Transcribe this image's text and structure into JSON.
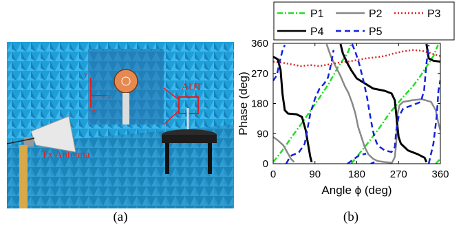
{
  "photo": {
    "label_aut": "AUT",
    "label_tx": "Tx Antenna",
    "axis_x": "x",
    "axis_y": "y",
    "axis_z": "z",
    "colors": {
      "chamber": "#1e9fd8",
      "annotation": "#e0201e"
    }
  },
  "captions": {
    "a": "(a)",
    "b": "(b)"
  },
  "chart_data": {
    "type": "line",
    "xlabel": "Angle ϕ (deg)",
    "ylabel": "Phase (deg)",
    "xlim": [
      0,
      360
    ],
    "ylim": [
      0,
      360
    ],
    "xticks": [
      "0",
      "90",
      "180",
      "270",
      "360"
    ],
    "yticks": [
      "0",
      "90",
      "180",
      "270",
      "360"
    ],
    "grid": false,
    "legend": "top",
    "series": [
      {
        "name": "P1",
        "color": "#22dd22",
        "dash": "dashdot",
        "segments": [
          [
            [
              0,
              5
            ],
            [
              20,
              40
            ],
            [
              40,
              80
            ],
            [
              60,
              118
            ],
            [
              80,
              158
            ],
            [
              100,
              198
            ],
            [
              120,
              240
            ],
            [
              140,
              290
            ],
            [
              160,
              330
            ],
            [
              168,
              358
            ]
          ],
          [
            [
              168,
              0
            ],
            [
              200,
              55
            ],
            [
              225,
              100
            ],
            [
              250,
              150
            ],
            [
              265,
              175
            ],
            [
              280,
              200
            ],
            [
              300,
              230
            ],
            [
              315,
              258
            ],
            [
              330,
              290
            ],
            [
              345,
              322
            ],
            [
              355,
              355
            ]
          ],
          [
            [
              350,
              0
            ],
            [
              360,
              15
            ]
          ]
        ]
      },
      {
        "name": "P2",
        "color": "#888888",
        "dash": "solid",
        "segments": [
          [
            [
              0,
              80
            ],
            [
              10,
              70
            ],
            [
              22,
              55
            ],
            [
              30,
              35
            ],
            [
              38,
              15
            ],
            [
              45,
              5
            ]
          ],
          [
            [
              115,
              358
            ],
            [
              125,
              318
            ],
            [
              135,
              290
            ],
            [
              145,
              262
            ],
            [
              155,
              230
            ],
            [
              162,
              212
            ],
            [
              170,
              182
            ],
            [
              177,
              150
            ],
            [
              183,
              110
            ],
            [
              190,
              80
            ],
            [
              197,
              50
            ],
            [
              205,
              28
            ],
            [
              215,
              15
            ],
            [
              225,
              8
            ],
            [
              240,
              5
            ],
            [
              256,
              3
            ],
            [
              262,
              20
            ],
            [
              265,
              60
            ],
            [
              266,
              110
            ],
            [
              268,
              150
            ],
            [
              272,
              175
            ],
            [
              280,
              185
            ],
            [
              300,
              190
            ],
            [
              320,
              193
            ],
            [
              340,
              185
            ],
            [
              350,
              160
            ],
            [
              356,
              120
            ],
            [
              360,
              100
            ]
          ]
        ]
      },
      {
        "name": "P3",
        "color": "#dd2222",
        "dash": "dotted",
        "segments": [
          [
            [
              0,
              305
            ],
            [
              20,
              302
            ],
            [
              40,
              297
            ],
            [
              60,
              292
            ],
            [
              80,
              295
            ],
            [
              100,
              292
            ],
            [
              120,
              297
            ],
            [
              140,
              302
            ],
            [
              160,
              305
            ],
            [
              180,
              310
            ],
            [
              200,
              315
            ],
            [
              220,
              318
            ],
            [
              240,
              322
            ],
            [
              260,
              330
            ],
            [
              280,
              336
            ],
            [
              300,
              340
            ],
            [
              320,
              338
            ],
            [
              340,
              330
            ],
            [
              360,
              322
            ]
          ]
        ]
      },
      {
        "name": "P4",
        "color": "#000000",
        "dash": "solid",
        "segments": [
          [
            [
              0,
              320
            ],
            [
              10,
              312
            ],
            [
              16,
              280
            ],
            [
              20,
              210
            ],
            [
              25,
              160
            ],
            [
              32,
              150
            ],
            [
              50,
              148
            ],
            [
              62,
              140
            ],
            [
              70,
              100
            ],
            [
              75,
              60
            ],
            [
              80,
              20
            ],
            [
              83,
              5
            ]
          ],
          [
            [
              145,
              358
            ],
            [
              150,
              330
            ],
            [
              160,
              300
            ],
            [
              168,
              280
            ],
            [
              180,
              255
            ],
            [
              200,
              238
            ],
            [
              215,
              225
            ],
            [
              240,
              218
            ],
            [
              255,
              210
            ],
            [
              262,
              190
            ],
            [
              267,
              120
            ],
            [
              270,
              80
            ],
            [
              275,
              60
            ],
            [
              290,
              40
            ],
            [
              312,
              28
            ],
            [
              326,
              18
            ],
            [
              330,
              5
            ]
          ],
          [
            [
              330,
              358
            ],
            [
              335,
              315
            ],
            [
              345,
              308
            ],
            [
              360,
              305
            ]
          ]
        ]
      },
      {
        "name": "P5",
        "color": "#1122dd",
        "dash": "dashed",
        "segments": [
          [
            [
              0,
              248
            ],
            [
              8,
              265
            ],
            [
              14,
              305
            ],
            [
              20,
              338
            ],
            [
              25,
              355
            ]
          ],
          [
            [
              28,
              0
            ],
            [
              34,
              15
            ],
            [
              40,
              25
            ],
            [
              55,
              33
            ],
            [
              68,
              60
            ],
            [
              72,
              90
            ],
            [
              80,
              150
            ],
            [
              90,
              195
            ],
            [
              100,
              225
            ],
            [
              110,
              240
            ],
            [
              118,
              258
            ],
            [
              125,
              300
            ],
            [
              130,
              340
            ]
          ],
          [
            [
              170,
              358
            ],
            [
              178,
              330
            ],
            [
              185,
              300
            ],
            [
              195,
              245
            ],
            [
              202,
              200
            ],
            [
              208,
              150
            ],
            [
              214,
              105
            ],
            [
              218,
              80
            ],
            [
              225,
              55
            ],
            [
              240,
              40
            ],
            [
              255,
              35
            ],
            [
              262,
              50
            ],
            [
              265,
              100
            ],
            [
              270,
              140
            ],
            [
              280,
              165
            ],
            [
              300,
              175
            ],
            [
              318,
              185
            ],
            [
              325,
              220
            ],
            [
              330,
              300
            ],
            [
              335,
              355
            ]
          ],
          [
            [
              210,
              0
            ],
            [
              218,
              5
            ]
          ],
          [
            [
              160,
              0
            ],
            [
              185,
              25
            ],
            [
              200,
              30
            ]
          ],
          [
            [
              335,
              0
            ],
            [
              345,
              60
            ],
            [
              352,
              140
            ],
            [
              356,
              220
            ],
            [
              360,
              250
            ]
          ]
        ]
      }
    ]
  }
}
